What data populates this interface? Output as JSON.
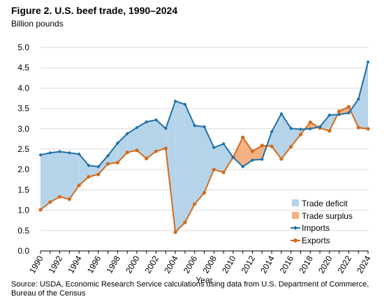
{
  "header": {
    "title": "Figure 2. U.S. beef trade, 1990–2024",
    "units": "Billion pounds"
  },
  "footer": {
    "source": "Source: USDA, Economic Research Service calculations using data from U.S. Department of Commerce, Bureau of the Census"
  },
  "chart_data": {
    "type": "line",
    "title": "Figure 2. U.S. beef trade, 1990–2024",
    "xlabel": "Year",
    "ylabel": "Billion pounds",
    "ylim": [
      0,
      5
    ],
    "yticks": [
      "0.0",
      "0.5",
      "1.0",
      "1.5",
      "2.0",
      "2.5",
      "3.0",
      "3.5",
      "4.0",
      "4.5",
      "5.0"
    ],
    "xticks": [
      "1990",
      "1992",
      "1994",
      "1996",
      "1998",
      "2000",
      "2002",
      "2004",
      "2006",
      "2008",
      "2010",
      "2012",
      "2014",
      "2016",
      "2018",
      "2020",
      "2022",
      "2024"
    ],
    "x": [
      1990,
      1991,
      1992,
      1993,
      1994,
      1995,
      1996,
      1997,
      1998,
      1999,
      2000,
      2001,
      2002,
      2003,
      2004,
      2005,
      2006,
      2007,
      2008,
      2009,
      2010,
      2011,
      2012,
      2013,
      2014,
      2015,
      2016,
      2017,
      2018,
      2019,
      2020,
      2021,
      2022,
      2023,
      2024
    ],
    "series": [
      {
        "name": "Imports",
        "color": "#1f6fa7",
        "values": [
          2.36,
          2.41,
          2.44,
          2.41,
          2.38,
          2.1,
          2.07,
          2.34,
          2.65,
          2.88,
          3.03,
          3.17,
          3.22,
          3.01,
          3.68,
          3.6,
          3.08,
          3.05,
          2.54,
          2.63,
          2.3,
          2.07,
          2.23,
          2.25,
          2.93,
          3.37,
          3.01,
          2.99,
          3.0,
          3.05,
          3.34,
          3.35,
          3.39,
          3.73,
          4.64
        ]
      },
      {
        "name": "Exports",
        "color": "#d46a1c",
        "values": [
          1.01,
          1.2,
          1.33,
          1.27,
          1.61,
          1.82,
          1.88,
          2.14,
          2.17,
          2.42,
          2.47,
          2.27,
          2.45,
          2.52,
          0.46,
          0.7,
          1.15,
          1.43,
          2.0,
          1.93,
          2.3,
          2.79,
          2.45,
          2.59,
          2.57,
          2.26,
          2.56,
          2.86,
          3.16,
          3.02,
          2.95,
          3.43,
          3.54,
          3.03,
          3.0
        ]
      }
    ],
    "fills": {
      "deficit": {
        "name": "Trade deficit",
        "color": "#b5d4ea"
      },
      "surplus": {
        "name": "Trade surplus",
        "color": "#f4b183"
      }
    },
    "legend": {
      "placement": "bottom-right",
      "entries": [
        "Trade deficit",
        "Trade surplus",
        "Imports",
        "Exports"
      ]
    },
    "grid": "horizontal"
  }
}
